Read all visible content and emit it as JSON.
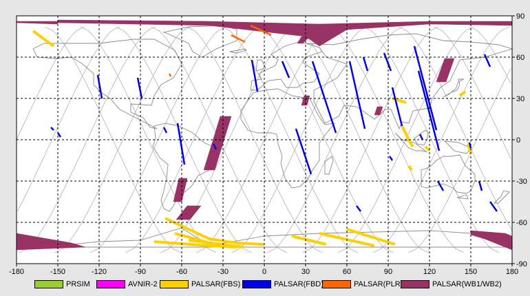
{
  "map": {
    "x_ticks": [
      "-180",
      "-150",
      "-120",
      "-90",
      "-60",
      "-30",
      "0",
      "30",
      "60",
      "90",
      "120",
      "150",
      "180"
    ],
    "y_ticks": [
      "90",
      "60",
      "30",
      "0",
      "-30",
      "-60",
      "-90"
    ],
    "x_range": [
      -180,
      180
    ],
    "y_range": [
      -90,
      90
    ],
    "grid": "dashed",
    "colors": {
      "background": "#e6e6e6",
      "map": "#ffffff",
      "coast": "#8a8a8a",
      "orbit": "#b8b8b8",
      "grid": "#000000"
    }
  },
  "legend": {
    "items": [
      {
        "label": "PRSIM",
        "color": "#9acd32"
      },
      {
        "label": "AVNIR-2",
        "color": "#ff00ff"
      },
      {
        "label": "PALSAR(FBS)",
        "color": "#ffd000"
      },
      {
        "label": "PALSAR(FBD)",
        "color": "#0000ee"
      },
      {
        "label": "PALSAR(PLR)",
        "color": "#ff6600"
      },
      {
        "label": "PALSAR(WB1/WB2)",
        "color": "#993366"
      }
    ]
  },
  "chart_data": {
    "type": "map",
    "xlim": [
      -180,
      180
    ],
    "ylim": [
      -90,
      90
    ],
    "swaths": {
      "wb": [
        [
          [
            -180,
            85
          ],
          [
            -150,
            84
          ],
          [
            -150,
            86
          ],
          [
            -180,
            86
          ]
        ],
        [
          [
            -150,
            87
          ],
          [
            -40,
            86
          ],
          [
            40,
            84
          ],
          [
            120,
            86
          ],
          [
            180,
            86
          ],
          [
            180,
            83
          ],
          [
            120,
            84
          ],
          [
            60,
            80
          ],
          [
            40,
            68
          ],
          [
            30,
            75
          ],
          [
            -40,
            83
          ],
          [
            -150,
            85
          ]
        ],
        [
          [
            20,
            80
          ],
          [
            40,
            79
          ],
          [
            45,
            73
          ],
          [
            25,
            77
          ]
        ],
        [
          [
            -32,
            17
          ],
          [
            -24,
            17
          ],
          [
            -36,
            -22
          ],
          [
            -44,
            -22
          ]
        ],
        [
          [
            -56,
            -48
          ],
          [
            -46,
            -48
          ],
          [
            -54,
            -58
          ],
          [
            -64,
            -58
          ]
        ],
        [
          [
            -62,
            -28
          ],
          [
            -56,
            -28
          ],
          [
            -60,
            -45
          ],
          [
            -66,
            -45
          ]
        ],
        [
          [
            27,
            75
          ],
          [
            33,
            75
          ],
          [
            28,
            70
          ],
          [
            24,
            70
          ]
        ],
        [
          [
            131,
            59
          ],
          [
            138,
            59
          ],
          [
            132,
            42
          ],
          [
            125,
            42
          ]
        ],
        [
          [
            82,
            24
          ],
          [
            86,
            24
          ],
          [
            84,
            18
          ],
          [
            80,
            18
          ]
        ],
        [
          [
            -180,
            -68
          ],
          [
            -140,
            -75
          ],
          [
            -130,
            -78
          ],
          [
            -180,
            -80
          ]
        ],
        [
          [
            150,
            -66
          ],
          [
            175,
            -68
          ],
          [
            180,
            -70
          ],
          [
            180,
            -80
          ],
          [
            160,
            -72
          ],
          [
            150,
            -69
          ]
        ],
        [
          [
            29,
            32
          ],
          [
            33,
            32
          ],
          [
            31,
            25
          ],
          [
            27,
            25
          ]
        ]
      ],
      "fbd": [
        [
          [
            -121,
            47
          ],
          [
            -118,
            30
          ]
        ],
        [
          [
            -92,
            45
          ],
          [
            -89,
            30
          ]
        ],
        [
          [
            -9,
            58
          ],
          [
            -5,
            35
          ]
        ],
        [
          [
            13,
            57
          ],
          [
            18,
            45
          ]
        ],
        [
          [
            35,
            57
          ],
          [
            52,
            5
          ]
        ],
        [
          [
            23,
            8
          ],
          [
            34,
            -25
          ]
        ],
        [
          [
            62,
            57
          ],
          [
            73,
            8
          ]
        ],
        [
          [
            72,
            60
          ],
          [
            75,
            50
          ]
        ],
        [
          [
            87,
            63
          ],
          [
            92,
            50
          ]
        ],
        [
          [
            93,
            38
          ],
          [
            100,
            10
          ]
        ],
        [
          [
            109,
            68
          ],
          [
            125,
            7
          ]
        ],
        [
          [
            112,
            50
          ],
          [
            127,
            -8
          ]
        ],
        [
          [
            160,
            62
          ],
          [
            164,
            53
          ]
        ],
        [
          [
            -63,
            12
          ],
          [
            -58,
            -18
          ]
        ],
        [
          [
            -150,
            5
          ],
          [
            -148,
            2
          ]
        ],
        [
          [
            -155,
            9
          ],
          [
            -153,
            7
          ]
        ],
        [
          [
            -73,
            9
          ],
          [
            -71,
            5
          ]
        ],
        [
          [
            -37,
            -3
          ],
          [
            -35,
            -7
          ]
        ],
        [
          [
            126,
            -30
          ],
          [
            130,
            -37
          ]
        ],
        [
          [
            156,
            -30
          ],
          [
            158,
            -37
          ]
        ],
        [
          [
            164,
            -45
          ],
          [
            169,
            -52
          ]
        ],
        [
          [
            113,
            4
          ],
          [
            115,
            0
          ]
        ],
        [
          [
            91,
            -12
          ],
          [
            93,
            -15
          ]
        ],
        [
          [
            67,
            -48
          ],
          [
            70,
            -52
          ]
        ],
        [
          [
            149,
            -2
          ],
          [
            150,
            -6
          ]
        ]
      ],
      "fbs": [
        [
          [
            -168,
            79
          ],
          [
            -153,
            68
          ]
        ],
        [
          [
            -72,
            -57
          ],
          [
            -40,
            -72
          ],
          [
            -20,
            -75
          ],
          [
            0,
            -76
          ]
        ],
        [
          [
            -80,
            -74
          ],
          [
            -40,
            -77
          ],
          [
            -20,
            -78
          ]
        ],
        [
          [
            -65,
            -68
          ],
          [
            -32,
            -77
          ]
        ],
        [
          [
            -55,
            -73
          ],
          [
            -15,
            -78
          ]
        ],
        [
          [
            20,
            -70
          ],
          [
            45,
            -76
          ]
        ],
        [
          [
            40,
            -68
          ],
          [
            80,
            -77
          ]
        ],
        [
          [
            60,
            -65
          ],
          [
            95,
            -76
          ]
        ],
        [
          [
            100,
            10
          ],
          [
            105,
            0
          ]
        ],
        [
          [
            104,
            1
          ],
          [
            108,
            -5
          ]
        ],
        [
          [
            93,
            30
          ],
          [
            103,
            27
          ]
        ],
        [
          [
            148,
            -3
          ],
          [
            150,
            -10
          ]
        ],
        [
          [
            142,
            32
          ],
          [
            146,
            35
          ]
        ],
        [
          [
            117,
            -5
          ],
          [
            120,
            -8
          ]
        ],
        [
          [
            105,
            -19
          ],
          [
            107,
            -22
          ]
        ]
      ],
      "plr": [
        [
          [
            -10,
            83
          ],
          [
            5,
            76
          ]
        ],
        [
          [
            -24,
            76
          ],
          [
            -14,
            71
          ]
        ],
        [
          [
            -69,
            48
          ],
          [
            -68,
            46
          ]
        ]
      ]
    }
  }
}
